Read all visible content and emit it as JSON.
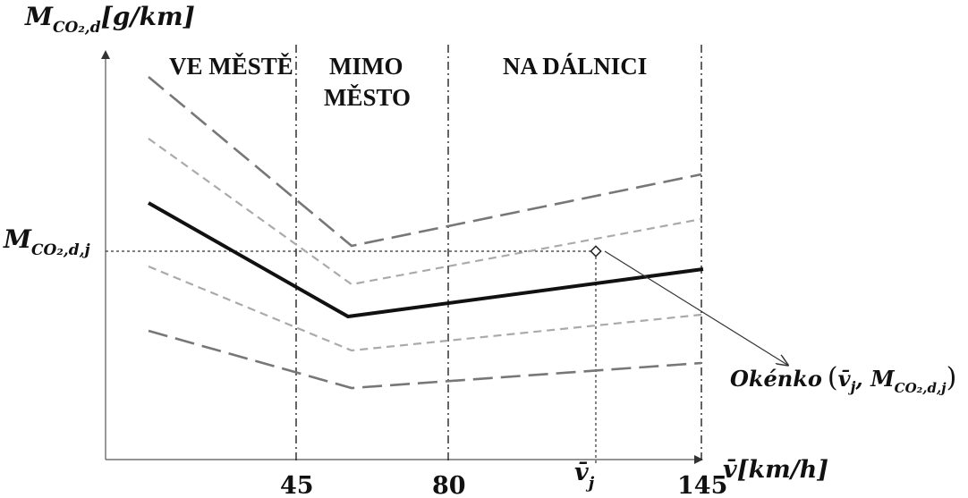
{
  "axes": {
    "y_label_main": "M",
    "y_label_sub": "CO₂,d",
    "y_label_unit": "[g/km]",
    "x_label": "v̄[km/h]",
    "y_marker_main": "M",
    "y_marker_sub": "CO₂,d,j"
  },
  "zones": {
    "city": "VE MĚSTĚ",
    "rural_line1": "MIMO",
    "rural_line2": "MĚSTO",
    "highway": "NA DÁLNICI"
  },
  "ticks": {
    "t45": "45",
    "t80": "80",
    "tvj_main": "v̄",
    "tvj_sub": "j",
    "t145": "145"
  },
  "annotation": {
    "word": "Okénko",
    "open": "(",
    "v_main": "v̄",
    "v_sub": "j",
    "comma": ", ",
    "m_main": "M",
    "m_sub": "CO₂,d,j",
    "close": ")"
  },
  "colors": {
    "main_line": "#111111",
    "long_dash": "#777777",
    "short_dash": "#aaaaaa"
  }
}
